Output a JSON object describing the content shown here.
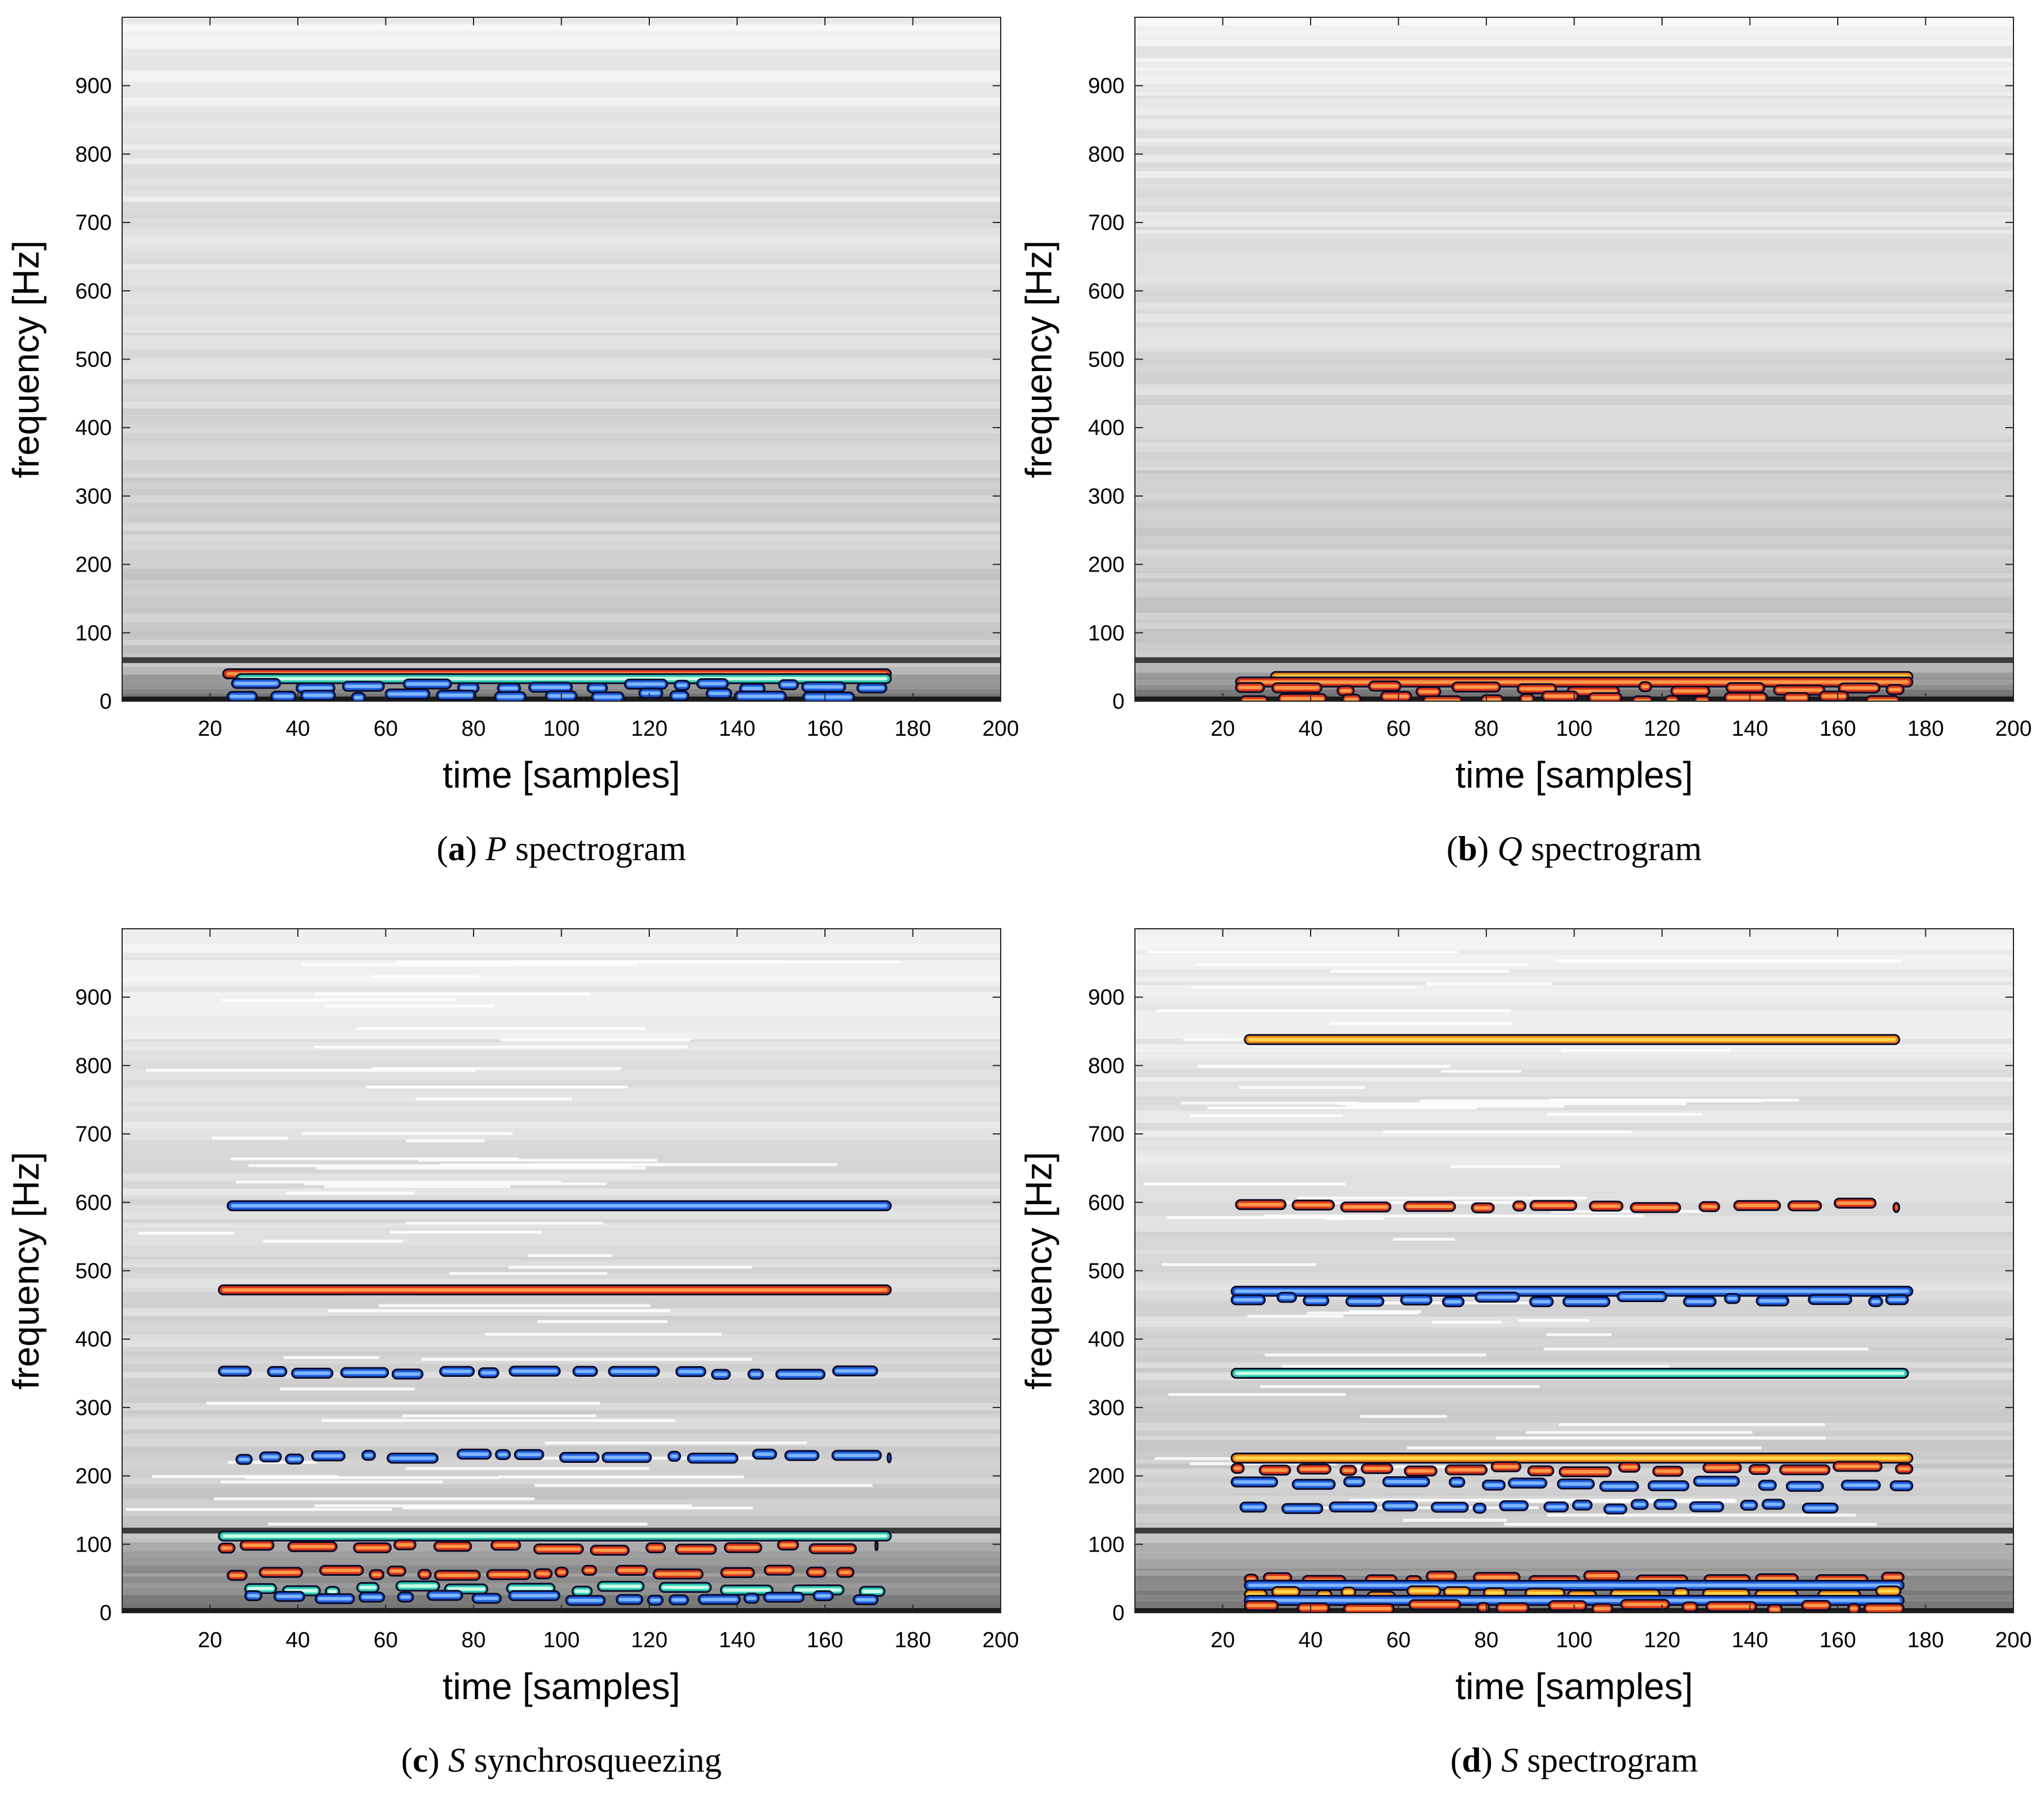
{
  "chart_data": [
    {
      "type": "heatmap",
      "panel_letter": "a",
      "caption_symbol": "P",
      "caption_text": "spectrogram",
      "xlabel": "time [samples]",
      "ylabel": "frequency [Hz]",
      "xlim": [
        0,
        200
      ],
      "ylim": [
        0,
        1000
      ],
      "xticks": [
        "20",
        "40",
        "60",
        "80",
        "100",
        "120",
        "140",
        "160",
        "180",
        "200"
      ],
      "yticks": [
        "0",
        "100",
        "200",
        "300",
        "400",
        "500",
        "600",
        "700",
        "800",
        "900"
      ],
      "dark_band_hz": 60,
      "bands": [
        {
          "freq": 40,
          "t_start": 23,
          "t_end": 175,
          "color": "red",
          "dots": false
        },
        {
          "freq": 33,
          "t_start": 26,
          "t_end": 175,
          "color": "teal",
          "dots": false
        },
        {
          "freq": 22,
          "t_start": 25,
          "t_end": 174,
          "color": "blue",
          "dots": true
        },
        {
          "freq": 8,
          "t_start": 24,
          "t_end": 170,
          "color": "blue",
          "dots": true
        }
      ]
    },
    {
      "type": "heatmap",
      "panel_letter": "b",
      "caption_symbol": "Q",
      "caption_text": "spectrogram",
      "xlabel": "time [samples]",
      "ylabel": "frequency [Hz]",
      "xlim": [
        0,
        200
      ],
      "ylim": [
        0,
        1000
      ],
      "xticks": [
        "20",
        "40",
        "60",
        "80",
        "100",
        "120",
        "140",
        "160",
        "180",
        "200"
      ],
      "yticks": [
        "0",
        "100",
        "200",
        "300",
        "400",
        "500",
        "600",
        "700",
        "800",
        "900"
      ],
      "dark_band_hz": 60,
      "bands": [
        {
          "freq": 36,
          "t_start": 31,
          "t_end": 177,
          "color": "yellow",
          "dots": false
        },
        {
          "freq": 28,
          "t_start": 23,
          "t_end": 177,
          "color": "red",
          "dots": false
        },
        {
          "freq": 18,
          "t_start": 23,
          "t_end": 175,
          "color": "red",
          "dots": true
        },
        {
          "freq": 4,
          "t_start": 24,
          "t_end": 174,
          "color": "red",
          "dots": true
        }
      ]
    },
    {
      "type": "heatmap",
      "panel_letter": "c",
      "caption_symbol": "S",
      "caption_text": "synchrosqueezing",
      "xlabel": "time [samples]",
      "ylabel": "frequency [Hz]",
      "xlim": [
        0,
        200
      ],
      "ylim": [
        0,
        1000
      ],
      "xticks": [
        "20",
        "40",
        "60",
        "80",
        "100",
        "120",
        "140",
        "160",
        "180",
        "200"
      ],
      "yticks": [
        "0",
        "100",
        "200",
        "300",
        "400",
        "500",
        "600",
        "700",
        "800",
        "900"
      ],
      "dark_band_hz": 120,
      "bands": [
        {
          "freq": 595,
          "t_start": 24,
          "t_end": 175,
          "color": "blue",
          "dots": false
        },
        {
          "freq": 472,
          "t_start": 22,
          "t_end": 175,
          "color": "red",
          "dots": false
        },
        {
          "freq": 352,
          "t_start": 22,
          "t_end": 175,
          "color": "blue",
          "dots": true
        },
        {
          "freq": 228,
          "t_start": 26,
          "t_end": 175,
          "color": "blue",
          "dots": true
        },
        {
          "freq": 112,
          "t_start": 22,
          "t_end": 175,
          "color": "teal",
          "dots": false
        },
        {
          "freq": 95,
          "t_start": 22,
          "t_end": 172,
          "color": "red",
          "dots": true
        },
        {
          "freq": 58,
          "t_start": 24,
          "t_end": 168,
          "color": "red",
          "dots": true
        },
        {
          "freq": 35,
          "t_start": 28,
          "t_end": 175,
          "color": "teal",
          "dots": true
        },
        {
          "freq": 22,
          "t_start": 28,
          "t_end": 172,
          "color": "blue",
          "dots": true
        }
      ]
    },
    {
      "type": "heatmap",
      "panel_letter": "d",
      "caption_symbol": "S",
      "caption_text": "spectrogram",
      "xlabel": "time [samples]",
      "ylabel": "frequency [Hz]",
      "xlim": [
        0,
        200
      ],
      "ylim": [
        0,
        1000
      ],
      "xticks": [
        "20",
        "40",
        "60",
        "80",
        "100",
        "120",
        "140",
        "160",
        "180",
        "200"
      ],
      "yticks": [
        "0",
        "100",
        "200",
        "300",
        "400",
        "500",
        "600",
        "700",
        "800",
        "900"
      ],
      "dark_band_hz": 120,
      "bands": [
        {
          "freq": 838,
          "t_start": 25,
          "t_end": 174,
          "color": "yellow",
          "dots": false
        },
        {
          "freq": 595,
          "t_start": 23,
          "t_end": 174,
          "color": "red",
          "dots": true
        },
        {
          "freq": 470,
          "t_start": 22,
          "t_end": 177,
          "color": "blue",
          "dots": false
        },
        {
          "freq": 458,
          "t_start": 22,
          "t_end": 176,
          "color": "blue",
          "dots": true
        },
        {
          "freq": 350,
          "t_start": 22,
          "t_end": 176,
          "color": "teal",
          "dots": false
        },
        {
          "freq": 226,
          "t_start": 22,
          "t_end": 177,
          "color": "yellow",
          "dots": false
        },
        {
          "freq": 210,
          "t_start": 22,
          "t_end": 177,
          "color": "red",
          "dots": true
        },
        {
          "freq": 188,
          "t_start": 22,
          "t_end": 177,
          "color": "blue",
          "dots": true
        },
        {
          "freq": 155,
          "t_start": 24,
          "t_end": 160,
          "color": "blue",
          "dots": true
        },
        {
          "freq": 50,
          "t_start": 25,
          "t_end": 175,
          "color": "red",
          "dots": true
        },
        {
          "freq": 40,
          "t_start": 25,
          "t_end": 175,
          "color": "blue",
          "dots": false
        },
        {
          "freq": 28,
          "t_start": 25,
          "t_end": 175,
          "color": "yellow",
          "dots": true
        },
        {
          "freq": 18,
          "t_start": 25,
          "t_end": 175,
          "color": "blue",
          "dots": false
        },
        {
          "freq": 8,
          "t_start": 25,
          "t_end": 175,
          "color": "red",
          "dots": true
        }
      ]
    }
  ],
  "colors": {
    "blue": "#1f5fe0",
    "teal": "#2fc9b0",
    "red": "#d8361b",
    "yellow": "#ffd84a",
    "outline": "#0a0a2a",
    "bg_light": "#f3f3f3",
    "bg_mid": "#d0d0d0",
    "bg_dark": "#555555"
  }
}
